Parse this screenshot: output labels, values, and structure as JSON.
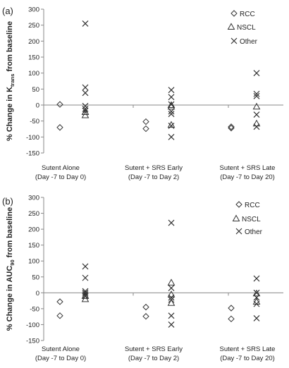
{
  "chart_data": [
    {
      "type": "scatter",
      "panel_label": "(a)",
      "ylabel_prefix": "% Change in K",
      "ylabel_sub": "trans",
      "ylabel_suffix": " from baseline",
      "ylim": [
        -150,
        300
      ],
      "yticks": [
        -150,
        -100,
        -50,
        0,
        50,
        100,
        150,
        200,
        250,
        300
      ],
      "categories": [
        {
          "line1": "Sutent Alone",
          "line2": "(Day -7 to Day 0)"
        },
        {
          "line1": "Sutent + SRS Early",
          "line2": "(Day -7 to Day 2)"
        },
        {
          "line1": "Sutent + SRS Late",
          "line2": "(Day -7 to Day 20)"
        }
      ],
      "series": [
        {
          "name": "RCC",
          "marker": "diamond",
          "points": [
            [
              0,
              2
            ],
            [
              0,
              -70
            ],
            [
              1,
              -52
            ],
            [
              1,
              -74
            ],
            [
              2,
              -68
            ],
            [
              2,
              -72
            ]
          ]
        },
        {
          "name": "NSCL",
          "marker": "triangle",
          "points": [
            [
              0,
              -22
            ],
            [
              0,
              -32
            ],
            [
              1,
              0
            ],
            [
              1,
              -5
            ],
            [
              1,
              -62
            ],
            [
              2,
              -5
            ],
            [
              2,
              -58
            ]
          ]
        },
        {
          "name": "Other",
          "marker": "x",
          "points": [
            [
              0,
              255
            ],
            [
              0,
              55
            ],
            [
              0,
              38
            ],
            [
              0,
              -3
            ],
            [
              0,
              -12
            ],
            [
              0,
              -18
            ],
            [
              1,
              47
            ],
            [
              1,
              25
            ],
            [
              1,
              2
            ],
            [
              1,
              -20
            ],
            [
              1,
              -28
            ],
            [
              1,
              -65
            ],
            [
              1,
              -100
            ],
            [
              2,
              100
            ],
            [
              2,
              35
            ],
            [
              2,
              28
            ],
            [
              2,
              -30
            ],
            [
              2,
              -68
            ]
          ]
        }
      ],
      "legend": {
        "position": "top-right",
        "labels": [
          "RCC",
          "NSCL",
          "Other"
        ]
      }
    },
    {
      "type": "scatter",
      "panel_label": "(b)",
      "ylabel_prefix": "% Change in AUC",
      "ylabel_sub": "90",
      "ylabel_suffix": " from baseline",
      "ylim": [
        -150,
        300
      ],
      "yticks": [
        -150,
        -100,
        -50,
        0,
        50,
        100,
        150,
        200,
        250,
        300
      ],
      "categories": [
        {
          "line1": "Sutent Alone",
          "line2": "(Day -7 to Day 0)"
        },
        {
          "line1": "Sutent + SRS Early",
          "line2": "(Day -7 to Day 2)"
        },
        {
          "line1": "Sutent + SRS Late",
          "line2": "(Day -7 to Day 20)"
        }
      ],
      "series": [
        {
          "name": "RCC",
          "marker": "diamond",
          "points": [
            [
              0,
              -28
            ],
            [
              0,
              -72
            ],
            [
              1,
              -45
            ],
            [
              1,
              -74
            ],
            [
              2,
              -48
            ],
            [
              2,
              -82
            ]
          ]
        },
        {
          "name": "NSCL",
          "marker": "triangle",
          "points": [
            [
              0,
              -10
            ],
            [
              0,
              -20
            ],
            [
              1,
              32
            ],
            [
              1,
              -5
            ],
            [
              1,
              -32
            ],
            [
              2,
              -2
            ],
            [
              2,
              -28
            ]
          ]
        },
        {
          "name": "Other",
          "marker": "x",
          "points": [
            [
              0,
              83
            ],
            [
              0,
              47
            ],
            [
              0,
              5
            ],
            [
              0,
              0
            ],
            [
              0,
              -5
            ],
            [
              0,
              -10
            ],
            [
              1,
              220
            ],
            [
              1,
              15
            ],
            [
              1,
              -15
            ],
            [
              1,
              -22
            ],
            [
              1,
              -72
            ],
            [
              1,
              -100
            ],
            [
              2,
              45
            ],
            [
              2,
              0
            ],
            [
              2,
              -15
            ],
            [
              2,
              -35
            ],
            [
              2,
              -80
            ]
          ]
        }
      ],
      "legend": {
        "position": "top-right",
        "labels": [
          "RCC",
          "NSCL",
          "Other"
        ]
      }
    }
  ]
}
